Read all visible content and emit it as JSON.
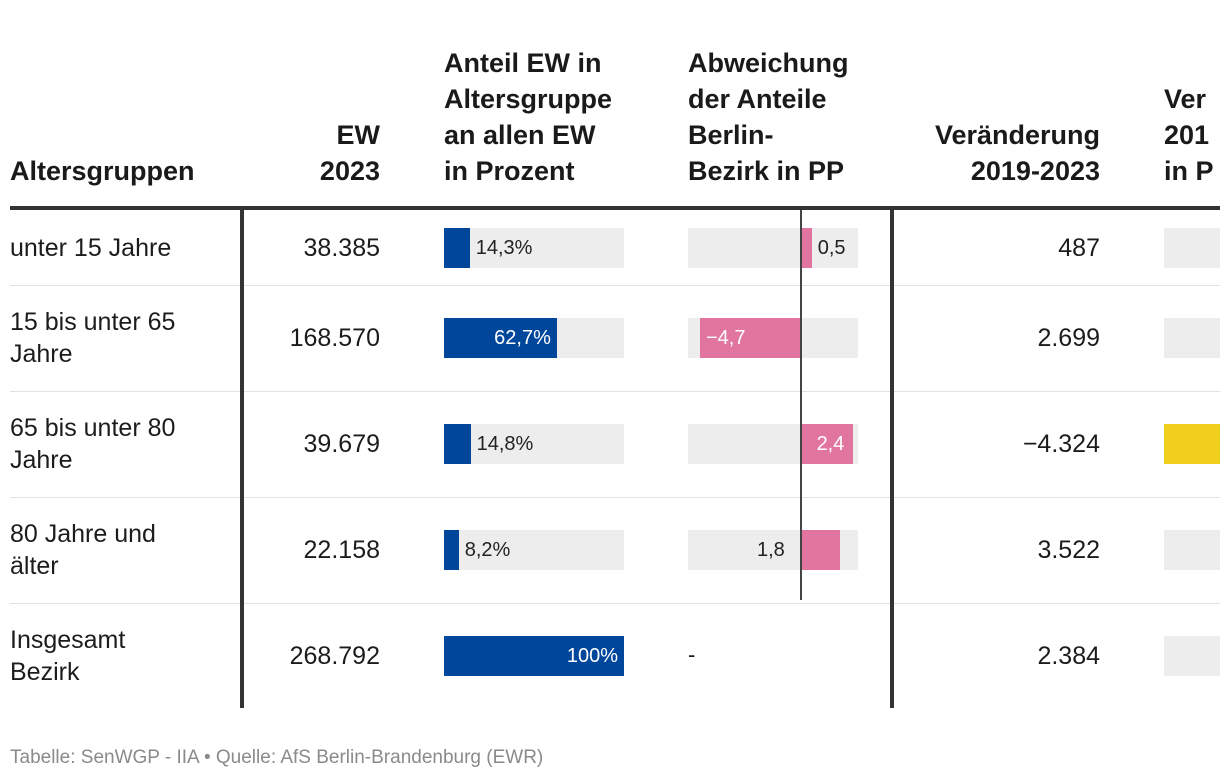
{
  "headers": {
    "alter": "Altersgruppen",
    "ew": "EW\n2023",
    "anteil": "Anteil EW in\nAltersgruppe\nan allen EW\nin Prozent",
    "abweichung": "Abweichung\nder Anteile\nBerlin-\nBezirk in PP",
    "veraenderung": "Veränderung\n2019-2023",
    "veraenderung_pct": "Ver\n201\nin P"
  },
  "footer": "Tabelle: SenWGP - IIA • Quelle: AfS Berlin-Brandenburg (EWR)",
  "colors": {
    "anteil_bar": "#00479b",
    "abw_bar": "#e2759f",
    "ver_pct_highlight": "#f0cf1d",
    "track": "#ededed"
  },
  "chart_data": {
    "type": "table",
    "columns": [
      "Altersgruppen",
      "EW 2023",
      "Anteil EW in Altersgruppe an allen EW in Prozent",
      "Abweichung der Anteile Berlin-Bezirk in PP",
      "Veränderung 2019-2023"
    ],
    "rows": [
      {
        "label": "unter 15 Jahre",
        "ew": "38.385",
        "anteil": 14.3,
        "anteil_label": "14,3%",
        "abw": 0.5,
        "abw_label": "0,5",
        "ver": "487",
        "ver_pct_highlight": false
      },
      {
        "label": "15 bis unter 65\nJahre",
        "ew": "168.570",
        "anteil": 62.7,
        "anteil_label": "62,7%",
        "abw": -4.7,
        "abw_label": "−4,7",
        "ver": "2.699",
        "ver_pct_highlight": false
      },
      {
        "label": "65 bis unter 80\nJahre",
        "ew": "39.679",
        "anteil": 14.8,
        "anteil_label": "14,8%",
        "abw": 2.4,
        "abw_label": "2,4",
        "ver": "−4.324",
        "ver_pct_highlight": true
      },
      {
        "label": "80 Jahre und\nälter",
        "ew": "22.158",
        "anteil": 8.2,
        "anteil_label": "8,2%",
        "abw": 1.8,
        "abw_label": "1,8",
        "ver": "3.522",
        "ver_pct_highlight": false
      },
      {
        "label": "Insgesamt\nBezirk",
        "ew": "268.792",
        "anteil": 100,
        "anteil_label": "100%",
        "abw": null,
        "abw_label": "-",
        "ver": "2.384",
        "ver_pct_highlight": false
      }
    ],
    "anteil_range": [
      0,
      100
    ],
    "abw_range": [
      -4.7,
      2.4
    ]
  }
}
